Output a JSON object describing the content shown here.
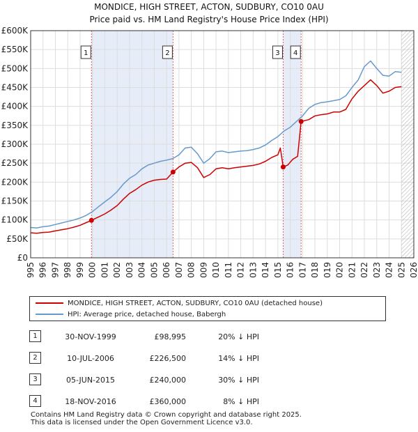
{
  "title": {
    "line1": "MONDICE, HIGH STREET, ACTON, SUDBURY, CO10 0AU",
    "line2": "Price paid vs. HM Land Registry's House Price Index (HPI)"
  },
  "legend": {
    "property_label": "MONDICE, HIGH STREET, ACTON, SUDBURY, CO10 0AU (detached house)",
    "hpi_label": "HPI: Average price, detached house, Babergh"
  },
  "colors": {
    "property": "#cc0000",
    "hpi": "#6699cc",
    "shade": "#e6ecf8",
    "grid": "#dddddd",
    "marker_line": "#e06060"
  },
  "chart_data": {
    "type": "line",
    "title": "Price paid vs. HM Land Registry's House Price Index (HPI)",
    "xlabel": "",
    "ylabel": "",
    "xlim": [
      1995,
      2026
    ],
    "ylim": [
      0,
      600000
    ],
    "x_ticks": [
      "1995",
      "1996",
      "1997",
      "1998",
      "1999",
      "2000",
      "2001",
      "2002",
      "2003",
      "2004",
      "2005",
      "2006",
      "2007",
      "2008",
      "2009",
      "2010",
      "2011",
      "2012",
      "2013",
      "2014",
      "2015",
      "2016",
      "2017",
      "2018",
      "2019",
      "2020",
      "2021",
      "2022",
      "2023",
      "2024",
      "2025",
      "2026"
    ],
    "y_ticks": [
      {
        "value": 0,
        "label": "£0"
      },
      {
        "value": 50000,
        "label": "£50K"
      },
      {
        "value": 100000,
        "label": "£100K"
      },
      {
        "value": 150000,
        "label": "£150K"
      },
      {
        "value": 200000,
        "label": "£200K"
      },
      {
        "value": 250000,
        "label": "£250K"
      },
      {
        "value": 300000,
        "label": "£300K"
      },
      {
        "value": 350000,
        "label": "£350K"
      },
      {
        "value": 400000,
        "label": "£400K"
      },
      {
        "value": 450000,
        "label": "£450K"
      },
      {
        "value": 500000,
        "label": "£500K"
      },
      {
        "value": 550000,
        "label": "£550K"
      },
      {
        "value": 600000,
        "label": "£600K"
      }
    ],
    "shaded_ranges": [
      [
        1999.92,
        2006.52
      ],
      [
        2015.43,
        2016.88
      ]
    ],
    "hatched_from": 2025.0,
    "series": [
      {
        "name": "HPI: Average price, detached house, Babergh",
        "color": "#6699cc",
        "x": [
          1995.0,
          1995.5,
          1996.0,
          1996.5,
          1997.0,
          1997.5,
          1998.0,
          1998.5,
          1999.0,
          1999.5,
          2000.0,
          2000.5,
          2001.0,
          2001.5,
          2002.0,
          2002.5,
          2003.0,
          2003.5,
          2004.0,
          2004.5,
          2005.0,
          2005.5,
          2006.0,
          2006.5,
          2007.0,
          2007.5,
          2008.0,
          2008.5,
          2009.0,
          2009.5,
          2010.0,
          2010.5,
          2011.0,
          2011.5,
          2012.0,
          2012.5,
          2013.0,
          2013.5,
          2014.0,
          2014.5,
          2015.0,
          2015.5,
          2016.0,
          2016.5,
          2017.0,
          2017.5,
          2018.0,
          2018.5,
          2019.0,
          2019.5,
          2020.0,
          2020.5,
          2021.0,
          2021.5,
          2022.0,
          2022.5,
          2023.0,
          2023.5,
          2024.0,
          2024.5,
          2025.0
        ],
        "values": [
          80000,
          79000,
          82000,
          84000,
          88000,
          92000,
          96000,
          100000,
          105000,
          112000,
          122000,
          135000,
          148000,
          160000,
          175000,
          195000,
          210000,
          220000,
          235000,
          245000,
          250000,
          255000,
          258000,
          262000,
          272000,
          290000,
          292000,
          275000,
          250000,
          262000,
          280000,
          282000,
          278000,
          280000,
          282000,
          283000,
          286000,
          290000,
          298000,
          310000,
          320000,
          335000,
          345000,
          360000,
          375000,
          395000,
          405000,
          410000,
          412000,
          415000,
          418000,
          428000,
          450000,
          470000,
          505000,
          520000,
          500000,
          482000,
          480000,
          492000,
          490000
        ]
      },
      {
        "name": "MONDICE, HIGH STREET, ACTON, SUDBURY, CO10 0AU (detached house)",
        "color": "#cc0000",
        "x": [
          1995.0,
          1995.5,
          1996.0,
          1996.5,
          1997.0,
          1997.5,
          1998.0,
          1998.5,
          1999.0,
          1999.5,
          1999.92,
          2000.5,
          2001.0,
          2001.5,
          2002.0,
          2002.5,
          2003.0,
          2003.5,
          2004.0,
          2004.5,
          2005.0,
          2005.5,
          2006.0,
          2006.52,
          2007.0,
          2007.5,
          2008.0,
          2008.5,
          2009.0,
          2009.5,
          2010.0,
          2010.5,
          2011.0,
          2011.5,
          2012.0,
          2012.5,
          2013.0,
          2013.5,
          2014.0,
          2014.5,
          2015.0,
          2015.2,
          2015.43,
          2015.8,
          2016.2,
          2016.6,
          2016.88,
          2017.5,
          2018.0,
          2018.5,
          2019.0,
          2019.5,
          2020.0,
          2020.5,
          2021.0,
          2021.5,
          2022.0,
          2022.5,
          2023.0,
          2023.5,
          2024.0,
          2024.5,
          2025.0
        ],
        "values": [
          66000,
          65000,
          67000,
          68000,
          71000,
          74000,
          77000,
          81000,
          86000,
          93000,
          98995,
          108000,
          116000,
          126000,
          138000,
          155000,
          170000,
          180000,
          192000,
          200000,
          205000,
          207000,
          208000,
          226500,
          240000,
          250000,
          252000,
          238000,
          212000,
          220000,
          235000,
          238000,
          235000,
          238000,
          240000,
          242000,
          244000,
          248000,
          255000,
          265000,
          272000,
          290000,
          240000,
          245000,
          260000,
          268000,
          360000,
          365000,
          375000,
          378000,
          380000,
          385000,
          385000,
          392000,
          420000,
          440000,
          455000,
          470000,
          455000,
          435000,
          440000,
          450000,
          452000
        ]
      }
    ],
    "markers": [
      {
        "id": "1",
        "x": 1999.92,
        "value": 98995
      },
      {
        "id": "2",
        "x": 2006.52,
        "value": 226500
      },
      {
        "id": "3",
        "x": 2015.43,
        "value": 240000
      },
      {
        "id": "4",
        "x": 2016.88,
        "value": 360000
      }
    ]
  },
  "sales": [
    {
      "num": "1",
      "date": "30-NOV-1999",
      "price": "£98,995",
      "hpi": "20% ↓ HPI"
    },
    {
      "num": "2",
      "date": "10-JUL-2006",
      "price": "£226,500",
      "hpi": "14% ↓ HPI"
    },
    {
      "num": "3",
      "date": "05-JUN-2015",
      "price": "£240,000",
      "hpi": "30% ↓ HPI"
    },
    {
      "num": "4",
      "date": "18-NOV-2016",
      "price": "£360,000",
      "hpi": "8% ↓ HPI"
    }
  ],
  "footer": {
    "line1": "Contains HM Land Registry data © Crown copyright and database right 2025.",
    "line2": "This data is licensed under the Open Government Licence v3.0."
  }
}
